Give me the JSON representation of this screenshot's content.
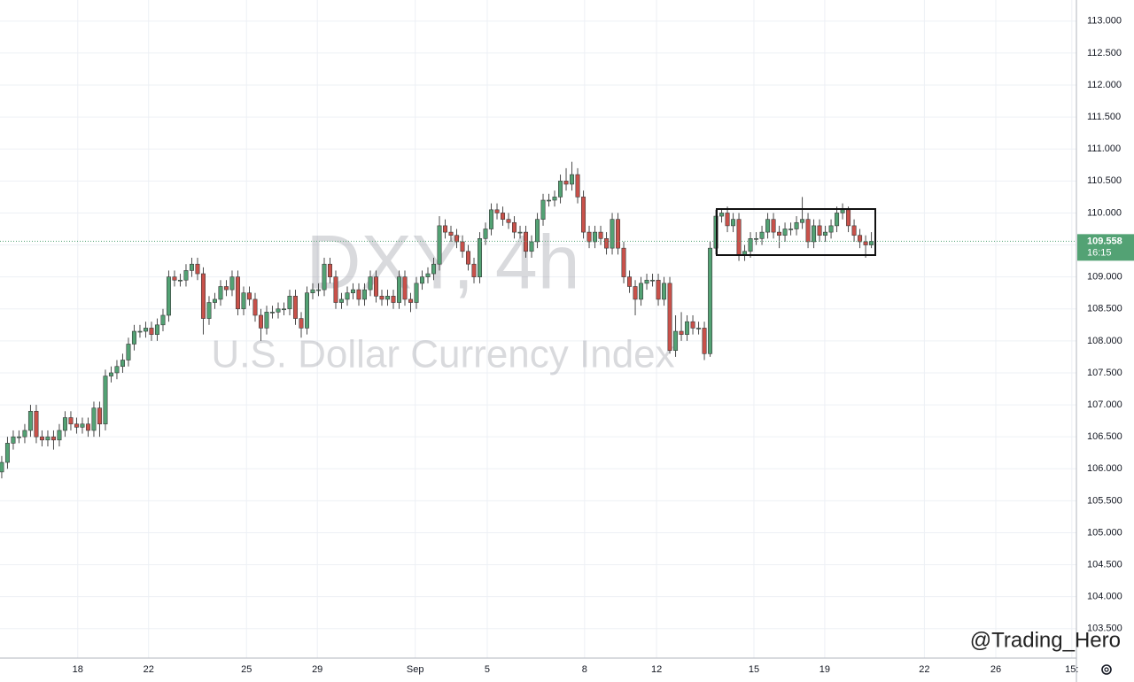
{
  "chart_data": {
    "type": "candlestick",
    "watermark_title": "DXY, 4h",
    "watermark_subtitle": "U.S. Dollar Currency Index",
    "credit": "@Trading_Hero",
    "countdown": "16:15",
    "up_color": "#53a274",
    "down_color": "#c9514a",
    "grid": true,
    "xlim": [
      -0.3,
      186.6
    ],
    "ylim": [
      103.04,
      113.33
    ],
    "xticks": [
      {
        "value": 13.2,
        "label": "18"
      },
      {
        "value": 25.5,
        "label": "22"
      },
      {
        "value": 42.5,
        "label": "25"
      },
      {
        "value": 54.8,
        "label": "29"
      },
      {
        "value": 71.8,
        "label": "Sep"
      },
      {
        "value": 84.3,
        "label": "5"
      },
      {
        "value": 101.2,
        "label": "8"
      },
      {
        "value": 113.7,
        "label": "12"
      },
      {
        "value": 130.6,
        "label": "15"
      },
      {
        "value": 142.9,
        "label": "19"
      },
      {
        "value": 160.2,
        "label": "22"
      },
      {
        "value": 172.6,
        "label": "26"
      },
      {
        "value": 185.8,
        "label": "15:"
      }
    ],
    "yticks": [
      {
        "value": 103.5,
        "label": "103.500"
      },
      {
        "value": 104,
        "label": "104.000"
      },
      {
        "value": 104.5,
        "label": "104.500"
      },
      {
        "value": 105,
        "label": "105.000"
      },
      {
        "value": 105.5,
        "label": "105.500"
      },
      {
        "value": 106,
        "label": "106.000"
      },
      {
        "value": 106.5,
        "label": "106.500"
      },
      {
        "value": 107,
        "label": "107.000"
      },
      {
        "value": 107.5,
        "label": "107.500"
      },
      {
        "value": 108,
        "label": "108.000"
      },
      {
        "value": 108.5,
        "label": "108.500"
      },
      {
        "value": 109,
        "label": "109.000"
      },
      {
        "value": 109.5,
        "label": "109.500"
      },
      {
        "value": 110,
        "label": "110.000"
      },
      {
        "value": 110.5,
        "label": "110.500"
      },
      {
        "value": 111,
        "label": "111.000"
      },
      {
        "value": 111.5,
        "label": "111.500"
      },
      {
        "value": 112,
        "label": "112.000"
      },
      {
        "value": 112.5,
        "label": "112.500"
      },
      {
        "value": 113,
        "label": "113.000"
      }
    ],
    "open": [
      105.95,
      106.1,
      106.4,
      106.5,
      106.5,
      106.6,
      106.9,
      106.5,
      106.45,
      106.5,
      106.45,
      106.6,
      106.8,
      106.7,
      106.65,
      106.7,
      106.6,
      106.95,
      106.7,
      107.45,
      107.5,
      107.6,
      107.7,
      107.95,
      108.15,
      108.15,
      108.2,
      108.1,
      108.25,
      108.4,
      109.0,
      108.95,
      108.95,
      109.1,
      109.2,
      109.05,
      108.35,
      108.6,
      108.65,
      108.85,
      108.8,
      109.0,
      108.5,
      108.75,
      108.65,
      108.4,
      108.2,
      108.45,
      108.45,
      108.5,
      108.5,
      108.7,
      108.35,
      108.2,
      108.75,
      108.8,
      108.8,
      109.2,
      109.0,
      108.6,
      108.65,
      108.75,
      108.8,
      108.65,
      108.8,
      109.0,
      108.7,
      108.65,
      108.7,
      108.6,
      109.0,
      108.65,
      108.6,
      108.9,
      109.0,
      109.05,
      109.2,
      109.8,
      109.7,
      109.65,
      109.55,
      109.4,
      109.2,
      109.0,
      109.6,
      109.75,
      110.05,
      110.0,
      109.9,
      109.85,
      109.7,
      109.7,
      109.4,
      109.55,
      109.9,
      110.2,
      110.2,
      110.25,
      110.5,
      110.45,
      110.6,
      110.25,
      109.7,
      109.55,
      109.7,
      109.6,
      109.45,
      109.9,
      109.45,
      109.0,
      108.85,
      108.65,
      108.9,
      108.95,
      108.95,
      108.65,
      108.9,
      107.85,
      108.15,
      108.1,
      108.3,
      108.2,
      108.2,
      107.8,
      109.45,
      109.95,
      110.0,
      109.8,
      109.9,
      109.35,
      109.4,
      109.6,
      109.6,
      109.7,
      109.9,
      109.7,
      109.65,
      109.75,
      109.75,
      109.85,
      109.9,
      109.55,
      109.8,
      109.65,
      109.7,
      109.8,
      110.0,
      110.05,
      109.8,
      109.65,
      109.55,
      109.5
    ],
    "high": [
      106.2,
      106.5,
      106.6,
      106.6,
      106.7,
      107.0,
      107.0,
      106.6,
      106.6,
      106.6,
      106.7,
      106.9,
      106.9,
      106.8,
      106.8,
      106.8,
      107.05,
      107.05,
      107.55,
      107.6,
      107.7,
      107.8,
      108.05,
      108.25,
      108.25,
      108.3,
      108.3,
      108.35,
      108.5,
      109.1,
      109.1,
      109.05,
      109.2,
      109.3,
      109.3,
      109.15,
      108.7,
      108.75,
      108.95,
      108.95,
      109.1,
      109.1,
      108.85,
      108.85,
      108.75,
      108.5,
      108.55,
      108.55,
      108.6,
      108.6,
      108.8,
      108.8,
      108.45,
      108.85,
      108.9,
      108.9,
      109.3,
      109.3,
      109.1,
      108.75,
      108.85,
      108.9,
      108.9,
      108.9,
      109.1,
      109.1,
      108.8,
      108.8,
      108.8,
      109.1,
      109.1,
      108.75,
      109.0,
      109.1,
      109.15,
      109.3,
      109.95,
      109.9,
      109.8,
      109.75,
      109.65,
      109.5,
      109.3,
      109.7,
      109.85,
      110.15,
      110.15,
      110.1,
      110.0,
      109.95,
      109.8,
      109.8,
      109.65,
      110.0,
      110.3,
      110.3,
      110.35,
      110.6,
      110.7,
      110.8,
      110.7,
      110.35,
      109.8,
      109.8,
      109.8,
      109.7,
      110.0,
      110.0,
      109.55,
      109.1,
      108.95,
      109.0,
      109.05,
      109.05,
      109.05,
      109.0,
      109.0,
      108.4,
      108.45,
      108.4,
      108.4,
      108.3,
      108.3,
      109.55,
      110.05,
      110.05,
      110.1,
      110.0,
      110.0,
      109.5,
      109.7,
      109.7,
      109.8,
      110.0,
      110.0,
      109.8,
      109.85,
      109.85,
      109.95,
      110.25,
      110.0,
      109.9,
      109.9,
      109.8,
      109.9,
      110.1,
      110.15,
      110.1,
      109.9,
      109.75,
      109.65,
      109.7
    ],
    "low": [
      105.85,
      106.0,
      106.3,
      106.4,
      106.4,
      106.5,
      106.4,
      106.35,
      106.35,
      106.3,
      106.35,
      106.5,
      106.6,
      106.55,
      106.55,
      106.5,
      106.5,
      106.5,
      106.6,
      107.35,
      107.4,
      107.5,
      107.6,
      107.85,
      108.05,
      108.05,
      108.0,
      108.0,
      108.15,
      108.3,
      108.85,
      108.85,
      108.85,
      109.0,
      108.95,
      108.1,
      108.25,
      108.5,
      108.55,
      108.7,
      108.7,
      108.4,
      108.4,
      108.55,
      108.3,
      108.0,
      108.1,
      108.35,
      108.35,
      108.4,
      108.4,
      108.25,
      108.05,
      108.1,
      108.65,
      108.7,
      108.7,
      108.9,
      108.5,
      108.5,
      108.55,
      108.65,
      108.55,
      108.55,
      108.7,
      108.6,
      108.55,
      108.55,
      108.5,
      108.5,
      108.55,
      108.45,
      108.5,
      108.8,
      108.9,
      108.95,
      109.1,
      109.6,
      109.55,
      109.45,
      109.3,
      109.1,
      108.9,
      108.9,
      109.5,
      109.65,
      109.9,
      109.8,
      109.75,
      109.6,
      109.6,
      109.3,
      109.3,
      109.45,
      109.8,
      110.1,
      110.1,
      110.15,
      110.35,
      110.35,
      110.15,
      109.6,
      109.45,
      109.45,
      109.5,
      109.35,
      109.35,
      109.35,
      108.9,
      108.75,
      108.4,
      108.55,
      108.8,
      108.85,
      108.55,
      108.55,
      107.8,
      107.75,
      108.0,
      108.0,
      108.1,
      108.1,
      107.7,
      107.75,
      109.35,
      109.85,
      109.7,
      109.7,
      109.25,
      109.25,
      109.3,
      109.5,
      109.5,
      109.6,
      109.6,
      109.45,
      109.55,
      109.65,
      109.65,
      109.75,
      109.45,
      109.45,
      109.55,
      109.55,
      109.6,
      109.7,
      109.9,
      109.7,
      109.55,
      109.45,
      109.3,
      109.45
    ],
    "close": [
      106.1,
      106.4,
      106.5,
      106.5,
      106.6,
      106.9,
      106.5,
      106.45,
      106.5,
      106.45,
      106.6,
      106.8,
      106.7,
      106.65,
      106.7,
      106.6,
      106.95,
      106.7,
      107.45,
      107.5,
      107.6,
      107.7,
      107.95,
      108.15,
      108.15,
      108.2,
      108.1,
      108.25,
      108.4,
      109.0,
      108.95,
      108.95,
      109.1,
      109.2,
      109.05,
      108.35,
      108.6,
      108.65,
      108.85,
      108.8,
      109.0,
      108.5,
      108.75,
      108.65,
      108.4,
      108.2,
      108.45,
      108.45,
      108.5,
      108.5,
      108.7,
      108.35,
      108.2,
      108.75,
      108.8,
      108.8,
      109.2,
      109.0,
      108.6,
      108.65,
      108.75,
      108.8,
      108.65,
      108.8,
      109.0,
      108.7,
      108.65,
      108.7,
      108.6,
      109.0,
      108.65,
      108.6,
      108.9,
      109.0,
      109.05,
      109.2,
      109.8,
      109.7,
      109.65,
      109.55,
      109.4,
      109.2,
      109.0,
      109.6,
      109.75,
      110.05,
      110.0,
      109.9,
      109.85,
      109.7,
      109.7,
      109.4,
      109.55,
      109.9,
      110.2,
      110.2,
      110.25,
      110.5,
      110.45,
      110.6,
      110.25,
      109.7,
      109.55,
      109.7,
      109.6,
      109.45,
      109.9,
      109.45,
      109.0,
      108.85,
      108.65,
      108.9,
      108.95,
      108.95,
      108.65,
      108.9,
      107.85,
      108.15,
      108.1,
      108.3,
      108.2,
      108.2,
      107.8,
      109.45,
      109.95,
      110.0,
      109.8,
      109.9,
      109.35,
      109.4,
      109.6,
      109.6,
      109.7,
      109.9,
      109.7,
      109.65,
      109.75,
      109.75,
      109.85,
      109.9,
      109.55,
      109.8,
      109.65,
      109.7,
      109.8,
      110.0,
      110.05,
      109.8,
      109.65,
      109.55,
      109.5,
      109.558
    ]
  }
}
